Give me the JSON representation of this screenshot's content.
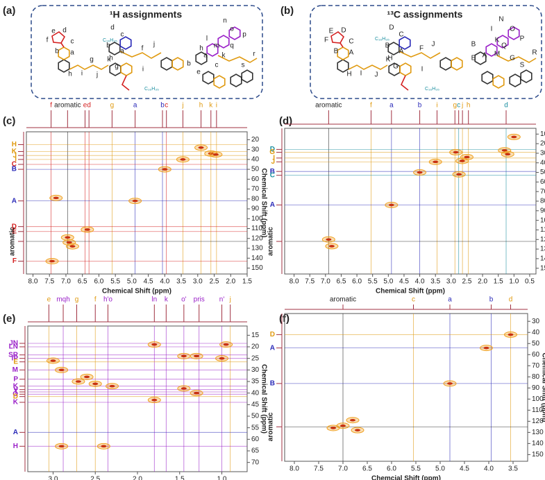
{
  "panels": [
    {
      "label": "(a)",
      "title": "¹H assignments",
      "substituents": [
        "C₁₆H₃₅",
        "C₁₆H₃₅"
      ],
      "atoms": [
        "e",
        "d",
        "f",
        "c",
        "b",
        "a",
        "g",
        "i",
        "h",
        "k",
        "j",
        "d",
        "c",
        "b",
        "a",
        "h",
        "g",
        "f",
        "j",
        "i",
        "n",
        "o",
        "p",
        "m",
        "q",
        "k",
        "r",
        "s",
        "l",
        "a",
        "c",
        "e",
        "b",
        "h"
      ]
    },
    {
      "label": "(b)",
      "title": "¹³C assignments",
      "substituents": [
        "C₁₆H₃₅",
        "C₁₆H₃₅"
      ],
      "atoms": [
        "E",
        "D",
        "F",
        "C",
        "B",
        "A",
        "I",
        "H",
        "K",
        "J",
        "D",
        "C",
        "B",
        "A",
        "H",
        "G",
        "F",
        "J",
        "I",
        "N",
        "I",
        "O",
        "P",
        "K",
        "Q",
        "A",
        "M",
        "R",
        "S",
        "G",
        "B",
        "E"
      ]
    }
  ],
  "chart_data": [
    {
      "type": "scatter",
      "label": "(c)",
      "xlabel": "Chemical Shift (ppm)",
      "ylabel": "Chemical Shift (ppm)",
      "color": "#f0a020",
      "x": [
        7.42,
        6.95,
        6.9,
        6.8,
        6.35,
        4.9,
        4.0,
        3.45,
        2.9,
        2.6,
        2.45,
        7.3
      ],
      "values": [
        143,
        119,
        124,
        128,
        111,
        82,
        50,
        40,
        28,
        34,
        35,
        79
      ],
      "xlim": [
        8.2,
        1.5
      ],
      "ylim": [
        12,
        156
      ],
      "xticks": [
        {
          "value": 8,
          "label": "8.0"
        },
        7.5,
        {
          "value": 7,
          "label": "7.0"
        },
        6.5,
        {
          "value": 6,
          "label": "6.0"
        },
        5.5,
        {
          "value": 5,
          "label": "5.0"
        },
        4.5,
        {
          "value": 4,
          "label": "4.0"
        },
        3.5,
        {
          "value": 3,
          "label": "3.0"
        },
        2.5,
        {
          "value": 2,
          "label": "2.0"
        },
        1.5
      ],
      "yticks": [
        20,
        30,
        40,
        50,
        60,
        70,
        80,
        90,
        100,
        110,
        120,
        130,
        140,
        150
      ],
      "top_labels": [
        {
          "text": "f",
          "x": 7.45,
          "color": "#d42020"
        },
        {
          "text": "aromatic",
          "x": 6.95,
          "color": "#222"
        },
        {
          "text": "e",
          "x": 6.42,
          "color": "#d42020"
        },
        {
          "text": "d",
          "x": 6.3,
          "color": "#d42020"
        },
        {
          "text": "g",
          "x": 5.6,
          "color": "#e09a10"
        },
        {
          "text": "a",
          "x": 4.9,
          "color": "#2a2ab8"
        },
        {
          "text": "b",
          "x": 4.07,
          "color": "#2a2ab8"
        },
        {
          "text": "c",
          "x": 3.95,
          "color": "#d42020"
        },
        {
          "text": "j",
          "x": 3.45,
          "color": "#e09a10"
        },
        {
          "text": "h",
          "x": 2.9,
          "color": "#e09a10"
        },
        {
          "text": "k",
          "x": 2.6,
          "color": "#e09a10"
        },
        {
          "text": "i",
          "x": 2.43,
          "color": "#e09a10"
        }
      ],
      "side_labels": [
        {
          "text": "H",
          "y": 25,
          "color": "#e09a10"
        },
        {
          "text": "K",
          "y": 32,
          "color": "#e09a10"
        },
        {
          "text": "J",
          "y": 36,
          "color": "#e09a10"
        },
        {
          "text": "I",
          "y": 40,
          "color": "#e09a10"
        },
        {
          "text": "C",
          "y": 45,
          "color": "#d42020"
        },
        {
          "text": "B",
          "y": 50,
          "color": "#2a2ab8"
        },
        {
          "text": "A",
          "y": 82,
          "color": "#2a2ab8"
        },
        {
          "text": "D",
          "y": 108,
          "color": "#d42020"
        },
        {
          "text": "E",
          "y": 113,
          "color": "#d42020"
        },
        {
          "text": "aromatic",
          "y": 123,
          "color": "#222"
        },
        {
          "text": "F",
          "y": 143,
          "color": "#d42020"
        }
      ]
    },
    {
      "type": "scatter",
      "label": "(d)",
      "xlabel": "Chemical Shift (ppm)",
      "ylabel": "Chemical Shift (ppm)",
      "color": "#f0a020",
      "x": [
        6.9,
        6.8,
        4.9,
        4.0,
        3.5,
        2.85,
        2.75,
        2.65,
        2.5,
        1.3,
        1.2,
        1.0
      ],
      "values": [
        120,
        127,
        84,
        50,
        39,
        29,
        52,
        38,
        34,
        27,
        31,
        13
      ],
      "xlim": [
        8.3,
        0.3
      ],
      "ylim": [
        4,
        156
      ],
      "xticks": [
        {
          "value": 8,
          "label": "8.0"
        },
        7.5,
        {
          "value": 7,
          "label": "7.0"
        },
        6.5,
        {
          "value": 6,
          "label": "6.0"
        },
        5.5,
        {
          "value": 5,
          "label": "5.0"
        },
        4.5,
        {
          "value": 4,
          "label": "4.0"
        },
        3.5,
        {
          "value": 3,
          "label": "3.0"
        },
        2.5,
        {
          "value": 2,
          "label": "2.0"
        },
        1.5,
        {
          "value": 1,
          "label": "1.0"
        },
        0.5
      ],
      "yticks": [
        10,
        20,
        30,
        40,
        50,
        60,
        70,
        80,
        90,
        100,
        110,
        120,
        130,
        140,
        150
      ],
      "top_labels": [
        {
          "text": "aromatic",
          "x": 6.9,
          "color": "#222"
        },
        {
          "text": "f",
          "x": 5.55,
          "color": "#e09a10"
        },
        {
          "text": "a",
          "x": 4.9,
          "color": "#2a2ab8"
        },
        {
          "text": "b",
          "x": 4.0,
          "color": "#2a2ab8"
        },
        {
          "text": "i",
          "x": 3.45,
          "color": "#e09a10"
        },
        {
          "text": "g",
          "x": 2.88,
          "color": "#e09a10"
        },
        {
          "text": "c",
          "x": 2.76,
          "color": "#1a8fa0"
        },
        {
          "text": "j",
          "x": 2.64,
          "color": "#e09a10"
        },
        {
          "text": "h",
          "x": 2.45,
          "color": "#e09a10"
        },
        {
          "text": "d",
          "x": 1.25,
          "color": "#1a8fa0"
        }
      ],
      "side_labels": [
        {
          "text": "D",
          "y": 26,
          "color": "#1a8fa0"
        },
        {
          "text": "G",
          "y": 29,
          "color": "#e09a10"
        },
        {
          "text": "I",
          "y": 35,
          "color": "#e09a10"
        },
        {
          "text": "J",
          "y": 39,
          "color": "#e09a10"
        },
        {
          "text": "B",
          "y": 49,
          "color": "#2a2ab8"
        },
        {
          "text": "C",
          "y": 53,
          "color": "#1a8fa0"
        },
        {
          "text": "A",
          "y": 84,
          "color": "#2a2ab8"
        },
        {
          "text": "aromatic",
          "y": 122,
          "color": "#222"
        }
      ]
    },
    {
      "type": "scatter",
      "label": "(e)",
      "xlabel": "Chemcial Shift (ppm)",
      "ylabel": "Chemical Shift (ppm)",
      "color": "#f0a020",
      "x": [
        1.8,
        0.95,
        1.3,
        1.45,
        1.0,
        3.0,
        2.9,
        2.6,
        2.5,
        2.3,
        2.7,
        1.45,
        1.3,
        1.8,
        2.9,
        2.4
      ],
      "values": [
        19,
        19,
        24,
        24,
        25,
        26,
        30,
        33,
        36,
        37,
        35,
        38,
        40,
        43,
        63,
        63
      ],
      "xlim": [
        3.3,
        0.7
      ],
      "ylim": [
        11,
        74
      ],
      "xticks": [
        {
          "value": 3,
          "label": "3.0"
        },
        2.5,
        {
          "value": 2,
          "label": "2.0"
        },
        1.5,
        {
          "value": 1,
          "label": "1.0"
        }
      ],
      "yticks": [
        15,
        20,
        25,
        30,
        35,
        40,
        45,
        50,
        55,
        60,
        65,
        70
      ],
      "top_labels": [
        {
          "text": "e",
          "x": 3.05,
          "color": "#e09a10"
        },
        {
          "text": "mqh",
          "x": 2.88,
          "color": "#9a20c8"
        },
        {
          "text": "g",
          "x": 2.72,
          "color": "#e09a10"
        },
        {
          "text": "f",
          "x": 2.5,
          "color": "#e09a10"
        },
        {
          "text": "h'o",
          "x": 2.35,
          "color": "#9a20c8"
        },
        {
          "text": "ln",
          "x": 1.8,
          "color": "#9a20c8"
        },
        {
          "text": "k",
          "x": 1.66,
          "color": "#9a20c8"
        },
        {
          "text": "o'",
          "x": 1.45,
          "color": "#9a20c8"
        },
        {
          "text": "pris",
          "x": 1.27,
          "color": "#9a20c8"
        },
        {
          "text": "n'",
          "x": 1.0,
          "color": "#9a20c8"
        },
        {
          "text": "j",
          "x": 0.9,
          "color": "#e09a10"
        }
      ],
      "side_labels": [
        {
          "text": "JN",
          "y": 18.5,
          "color": "#9a20c8"
        },
        {
          "text": "LN",
          "y": 20,
          "color": "#9a20c8"
        },
        {
          "text": "SR",
          "y": 23.5,
          "color": "#9a20c8"
        },
        {
          "text": "IP",
          "y": 25,
          "color": "#9a20c8"
        },
        {
          "text": "E",
          "y": 26.5,
          "color": "#e09a10"
        },
        {
          "text": "M",
          "y": 30,
          "color": "#9a20c8"
        },
        {
          "text": "P",
          "y": 34,
          "color": "#9a20c8"
        },
        {
          "text": "K",
          "y": 37,
          "color": "#9a20c8"
        },
        {
          "text": "V",
          "y": 38.5,
          "color": "#9a20c8"
        },
        {
          "text": "T",
          "y": 39.5,
          "color": "#9a20c8"
        },
        {
          "text": "O",
          "y": 40.5,
          "color": "#9a20c8"
        },
        {
          "text": "D",
          "y": 41.5,
          "color": "#e09a10"
        },
        {
          "text": "K",
          "y": 44,
          "color": "#9a20c8"
        },
        {
          "text": "A",
          "y": 57,
          "color": "#2a2ab8"
        },
        {
          "text": "H",
          "y": 63,
          "color": "#9a20c8"
        }
      ]
    },
    {
      "type": "scatter",
      "label": "(f)",
      "xlabel": "Chemcial Shift (ppm)",
      "ylabel": "Chemical Shift (ppm)",
      "color": "#f0a020",
      "x": [
        3.55,
        4.05,
        4.8,
        7.0,
        6.8,
        7.2,
        6.7
      ],
      "values": [
        42,
        54,
        86,
        124,
        119,
        126,
        128
      ],
      "xlim": [
        8.2,
        3.2
      ],
      "ylim": [
        23,
        156
      ],
      "xticks": [
        {
          "value": 8,
          "label": "8.0"
        },
        7.5,
        {
          "value": 7,
          "label": "7.0"
        },
        6.5,
        {
          "value": 6,
          "label": "6.0"
        },
        5.5,
        {
          "value": 5,
          "label": "5.0"
        },
        4.5,
        {
          "value": 4,
          "label": "4.0"
        },
        3.5
      ],
      "yticks": [
        30,
        40,
        50,
        60,
        70,
        80,
        90,
        100,
        110,
        120,
        130,
        140,
        150
      ],
      "top_labels": [
        {
          "text": "aromatic",
          "x": 7.0,
          "color": "#222"
        },
        {
          "text": "c",
          "x": 5.55,
          "color": "#e09a10"
        },
        {
          "text": "a",
          "x": 4.8,
          "color": "#2a2ab8"
        },
        {
          "text": "b",
          "x": 3.95,
          "color": "#2a2ab8"
        },
        {
          "text": "d",
          "x": 3.55,
          "color": "#e09a10"
        }
      ],
      "side_labels": [
        {
          "text": "D",
          "y": 42,
          "color": "#e09a10"
        },
        {
          "text": "A",
          "y": 54,
          "color": "#2a2ab8"
        },
        {
          "text": "B",
          "y": 86,
          "color": "#2a2ab8"
        },
        {
          "text": "aromatic",
          "y": 125,
          "color": "#222"
        }
      ]
    }
  ]
}
